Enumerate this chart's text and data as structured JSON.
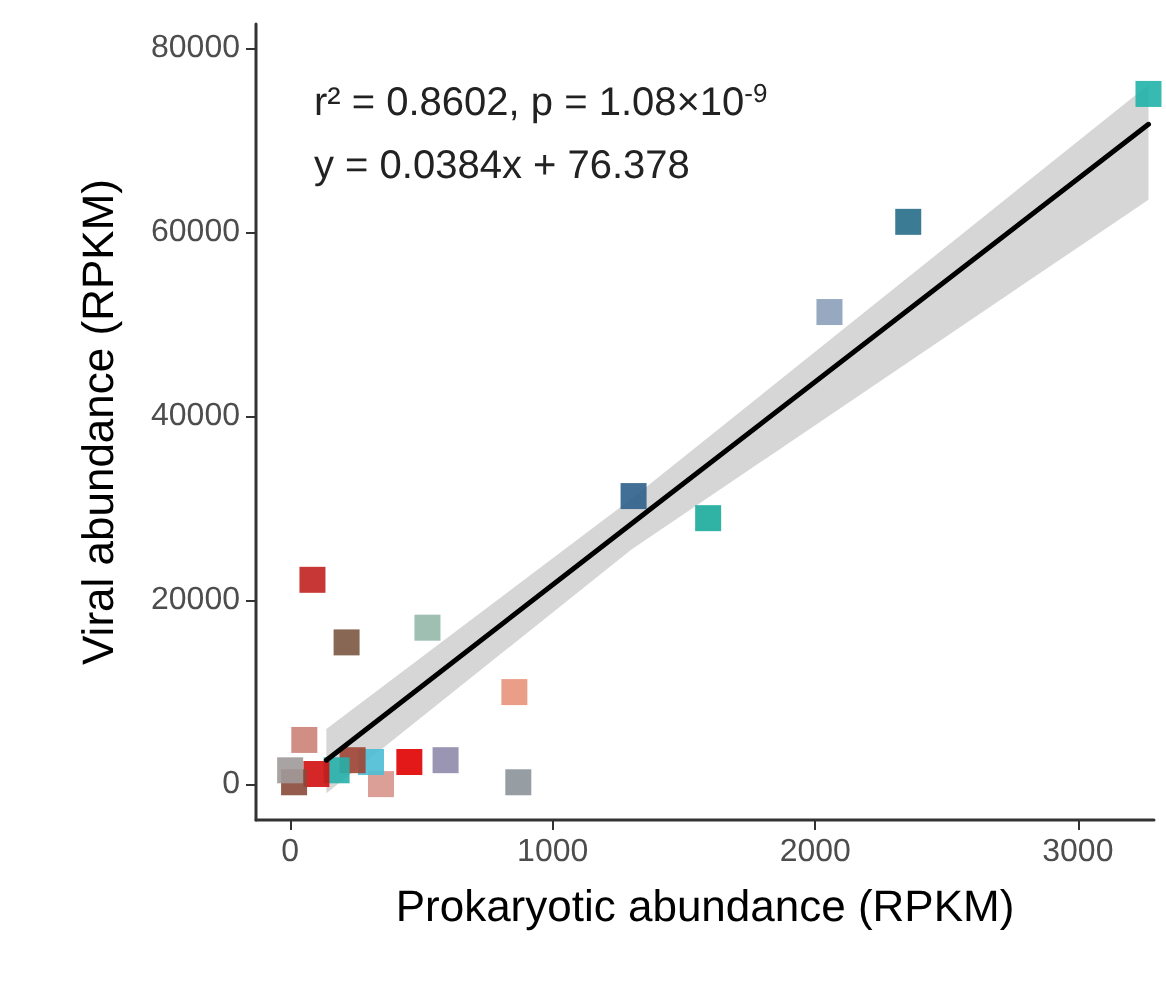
{
  "chart_data": {
    "type": "scatter",
    "xlabel": "Prokaryotic abundance (RPKM)",
    "ylabel": "Viral abundance (RPKM)",
    "annotations": [
      "r² = 0.8602, p = 1.08×10$^{-9}$",
      "y = 0.0384x + 76.378"
    ],
    "xlim": [
      -130,
      3290
    ],
    "ylim": [
      -3900,
      82600
    ],
    "xticks": [
      0,
      1000,
      2000,
      3000
    ],
    "yticks": [
      0,
      20000,
      40000,
      60000,
      80000
    ],
    "grid": false,
    "marker": "square",
    "series": [
      {
        "type": "line",
        "color": "#000000",
        "x": [
          138,
          1300,
          3269
        ],
        "values": [
          2600,
          28300,
          71700
        ],
        "lower": [
          -1000,
          25500,
          63500
        ],
        "upper": [
          6000,
          31000,
          76000
        ],
        "marker": "none",
        "line_style": "solid"
      },
      {
        "x": [
          3269,
          2354,
          2054,
          1308,
          1592,
          85,
          215,
          523,
          854,
          54,
          592,
          869,
          454,
          346,
          308,
          238,
          177,
          100,
          15,
          0
        ],
        "values": [
          75000,
          61100,
          51300,
          31300,
          28900,
          22200,
          15400,
          17000,
          10000,
          4800,
          2600,
          200,
          2400,
          0,
          2400,
          2600,
          1500,
          1100,
          200,
          1500
        ],
        "colors": [
          "#20b2aa",
          "#276d88",
          "#8c9fba",
          "#2e5f8a",
          "#1aab9b",
          "#c0211f",
          "#7b5843",
          "#93b8a8",
          "#e8937a",
          "#cc8277",
          "#8e8aaa",
          "#8c9399",
          "#e00000",
          "#d8958c",
          "#4bbcd4",
          "#a04535",
          "#25b0a8",
          "#d00f0f",
          "#8a4a3a",
          "#a09a9a"
        ]
      }
    ]
  }
}
